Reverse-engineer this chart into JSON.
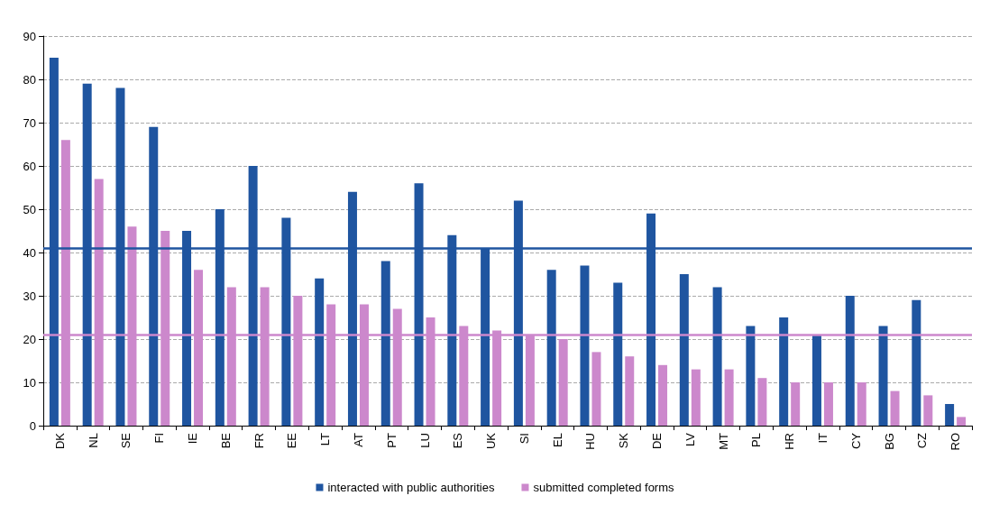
{
  "chart_data": {
    "type": "bar",
    "categories": [
      "DK",
      "NL",
      "SE",
      "FI",
      "IE",
      "BE",
      "FR",
      "EE",
      "LT",
      "AT",
      "PT",
      "LU",
      "ES",
      "UK",
      "SI",
      "EL",
      "HU",
      "SK",
      "DE",
      "LV",
      "MT",
      "PL",
      "HR",
      "IT",
      "CY",
      "BG",
      "CZ",
      "RO"
    ],
    "series": [
      {
        "name": "interacted with public authorities",
        "color": "#1f55a0",
        "values": [
          85,
          79,
          78,
          69,
          45,
          50,
          60,
          48,
          34,
          54,
          38,
          56,
          44,
          41,
          52,
          36,
          37,
          33,
          49,
          35,
          32,
          23,
          25,
          21,
          30,
          23,
          29,
          5
        ]
      },
      {
        "name": "submitted completed forms",
        "color": "#cc88cc",
        "values": [
          66,
          57,
          46,
          45,
          36,
          32,
          32,
          30,
          28,
          28,
          27,
          25,
          23,
          22,
          21,
          20,
          17,
          16,
          14,
          13,
          13,
          11,
          10,
          10,
          10,
          8,
          7,
          2
        ]
      }
    ],
    "ref_lines": [
      {
        "axis": "y",
        "value": 41,
        "color": "#1f55a0"
      },
      {
        "axis": "y",
        "value": 21,
        "color": "#cc88cc"
      }
    ],
    "ylim": [
      0,
      90
    ],
    "yticks": [
      0,
      10,
      20,
      30,
      40,
      50,
      60,
      70,
      80,
      90
    ],
    "grid": "y",
    "legend": "bottom"
  }
}
